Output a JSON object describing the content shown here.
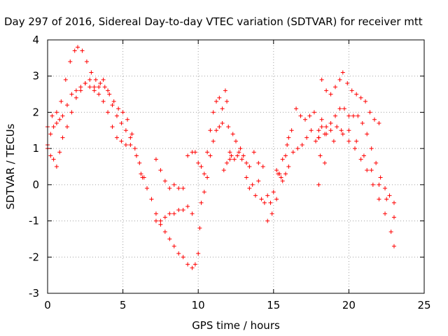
{
  "chart_data": {
    "type": "scatter",
    "title": "Day 297 of 2016, Sidereal Day-to-day VTEC variation (SDTVAR) for receiver mtt",
    "xlabel": "GPS time / hours",
    "ylabel": "SDTVAR / TECUs",
    "xlim": [
      0,
      25
    ],
    "ylim": [
      -3,
      4
    ],
    "xticks": [
      "0",
      "5",
      "10",
      "15",
      "20",
      "25"
    ],
    "yticks": [
      "-3",
      "-2",
      "-1",
      "0",
      "1",
      "2",
      "3",
      "4"
    ],
    "grid": true,
    "marker": "+",
    "color": "#ff0000",
    "series": [
      {
        "x": [
          0,
          0.3,
          0.6,
          0.9,
          1.2,
          1.5,
          1.8,
          2.0,
          2.3,
          2.6,
          2.9,
          3.2,
          3.5,
          3.8,
          4.1,
          4.4,
          4.7,
          5.0,
          5.3,
          5.6,
          5.9,
          6.2
        ],
        "y": [
          1.6,
          1.9,
          2.0,
          2.3,
          2.9,
          3.4,
          3.7,
          3.8,
          3.7,
          3.4,
          3.1,
          2.9,
          2.8,
          2.7,
          2.5,
          2.3,
          2.1,
          2.0,
          1.8,
          1.4,
          0.8,
          0.3
        ]
      },
      {
        "x": [
          0,
          0.2,
          0.4,
          0.6,
          0.8,
          1.0,
          1.3,
          1.6,
          1.9,
          2.2,
          2.5,
          2.8,
          3.1,
          3.4,
          3.7,
          4.0,
          4.3,
          4.6,
          4.9,
          5.2,
          5.5,
          5.8,
          6.1,
          6.4
        ],
        "y": [
          1.1,
          1.4,
          1.6,
          1.7,
          1.8,
          1.9,
          2.2,
          2.5,
          2.6,
          2.7,
          2.8,
          2.7,
          2.6,
          2.7,
          2.9,
          2.6,
          2.2,
          1.9,
          1.7,
          1.5,
          1.3,
          1.0,
          0.6,
          0.2
        ]
      },
      {
        "x": [
          0,
          0.2,
          0.4,
          0.6,
          0.8,
          1.0,
          1.3,
          1.6,
          1.9,
          2.2,
          2.5,
          2.8,
          3.1,
          3.4,
          3.7,
          4.0,
          4.3,
          4.6,
          4.9,
          5.2,
          5.5
        ],
        "y": [
          1.0,
          0.8,
          0.7,
          0.5,
          0.9,
          1.3,
          1.6,
          2.0,
          2.4,
          2.6,
          2.8,
          2.9,
          2.7,
          2.5,
          2.3,
          2.0,
          1.6,
          1.3,
          1.2,
          1.1,
          1.1
        ]
      },
      {
        "x": [
          6.3,
          6.6,
          6.9,
          7.2,
          7.5,
          7.8,
          8.1,
          8.4,
          8.7,
          9.0,
          9.3,
          9.6,
          9.8
        ],
        "y": [
          0.2,
          -0.1,
          -0.4,
          -0.8,
          -1.1,
          -1.3,
          -1.5,
          -1.7,
          -1.9,
          -2.0,
          -2.2,
          -2.3,
          -2.2
        ]
      },
      {
        "x": [
          7.2,
          7.5,
          7.8,
          8.1,
          8.4,
          8.7,
          9.0,
          9.3,
          9.6,
          9.8
        ],
        "y": [
          0.7,
          0.4,
          0.1,
          -0.1,
          0.0,
          -0.1,
          -0.1,
          0.8,
          0.9,
          0.9
        ]
      },
      {
        "x": [
          7.2,
          7.5,
          7.8,
          8.1,
          8.4,
          8.7,
          9.0,
          9.3,
          9.6
        ],
        "y": [
          -1.0,
          -1.0,
          -0.9,
          -0.8,
          -0.8,
          -0.7,
          -0.7,
          -0.6,
          -0.8
        ]
      },
      {
        "x": [
          10.0,
          10.1,
          10.2,
          10.4,
          10.6,
          10.8,
          11.0,
          11.2,
          11.4,
          11.6
        ],
        "y": [
          -1.9,
          -1.2,
          -0.5,
          0.3,
          0.9,
          1.5,
          2.0,
          2.3,
          2.4,
          2.1
        ]
      },
      {
        "x": [
          10.0,
          10.2,
          10.4,
          10.6,
          10.8,
          11.0,
          11.2,
          11.4,
          11.6
        ],
        "y": [
          0.6,
          0.5,
          -0.2,
          0.2,
          0.8,
          1.2,
          1.5,
          1.6,
          1.7
        ]
      },
      {
        "x": [
          11.8,
          11.9,
          12.0,
          12.1,
          12.2,
          12.4,
          12.6,
          12.8,
          13.0,
          13.2
        ],
        "y": [
          2.6,
          2.3,
          1.6,
          0.9,
          0.8,
          0.7,
          0.8,
          1.0,
          0.8,
          0.6
        ]
      },
      {
        "x": [
          11.7,
          11.9,
          12.1,
          12.3,
          12.5,
          12.7,
          12.9
        ],
        "y": [
          0.4,
          0.6,
          0.7,
          1.4,
          1.2,
          0.9,
          0.7
        ]
      },
      {
        "x": [
          13.2,
          13.4,
          13.6,
          13.8,
          14.0,
          14.2,
          14.4,
          14.6,
          14.8,
          15.0,
          15.2,
          15.4,
          15.6,
          15.8
        ],
        "y": [
          0.2,
          -0.1,
          0.0,
          -0.3,
          0.1,
          -0.4,
          -0.5,
          -1.0,
          -0.5,
          -0.2,
          0.4,
          0.3,
          0.1,
          0.3
        ]
      },
      {
        "x": [
          13.4,
          13.7,
          14.0,
          14.3,
          14.6,
          14.9,
          15.2,
          15.5,
          15.8,
          16.0
        ],
        "y": [
          0.5,
          0.9,
          0.6,
          0.5,
          -0.3,
          -0.8,
          -0.4,
          0.2,
          0.8,
          1.3
        ]
      },
      {
        "x": [
          15.3,
          15.6,
          15.9,
          16.2,
          16.5,
          16.8,
          17.1,
          17.4,
          17.7,
          18.0,
          18.2
        ],
        "y": [
          0.3,
          0.7,
          1.1,
          1.5,
          2.1,
          1.9,
          1.8,
          1.9,
          2.0,
          1.3,
          1.6
        ]
      },
      {
        "x": [
          16.0,
          16.3,
          16.6,
          16.9,
          17.2,
          17.5,
          17.8,
          18.1,
          18.4
        ],
        "y": [
          0.5,
          0.9,
          1.0,
          1.1,
          1.3,
          1.5,
          1.2,
          0.8,
          0.6
        ]
      },
      {
        "x": [
          18.2,
          18.5,
          18.8,
          19.1,
          19.4,
          19.6,
          19.9,
          20.2,
          20.5,
          20.8,
          21.1,
          21.4,
          21.7,
          22.0
        ],
        "y": [
          2.9,
          2.6,
          2.5,
          2.7,
          2.9,
          3.1,
          2.8,
          2.6,
          2.5,
          2.4,
          2.3,
          2.0,
          1.8,
          1.7
        ]
      },
      {
        "x": [
          18.2,
          18.5,
          18.8,
          19.1,
          19.4,
          19.7,
          20.0,
          20.3,
          20.6,
          20.9,
          21.2,
          21.5,
          21.8,
          22.1,
          22.4,
          22.7,
          23.0
        ],
        "y": [
          1.8,
          1.6,
          1.7,
          1.9,
          2.1,
          2.1,
          1.9,
          1.9,
          1.9,
          1.7,
          1.4,
          1.0,
          0.6,
          0.2,
          -0.1,
          -0.3,
          -0.5
        ]
      },
      {
        "x": [
          18.0,
          18.4,
          18.8,
          19.2,
          19.6,
          20.0,
          20.4,
          20.8,
          21.2,
          21.6,
          22.0,
          22.4,
          22.8,
          23.0
        ],
        "y": [
          1.5,
          1.4,
          1.5,
          1.6,
          1.4,
          1.2,
          1.0,
          0.7,
          0.4,
          0.0,
          -0.4,
          -0.8,
          -1.3,
          -1.7
        ]
      },
      {
        "x": [
          18.0,
          18.5,
          19.0,
          19.5,
          20.0,
          20.5,
          21.0,
          21.5,
          22.0,
          22.5,
          23.0
        ],
        "y": [
          1.3,
          1.4,
          1.2,
          1.5,
          1.5,
          1.2,
          0.8,
          0.4,
          0.0,
          -0.4,
          -0.9
        ]
      },
      {
        "x": [
          18.0
        ],
        "y": [
          0.0
        ]
      }
    ]
  }
}
